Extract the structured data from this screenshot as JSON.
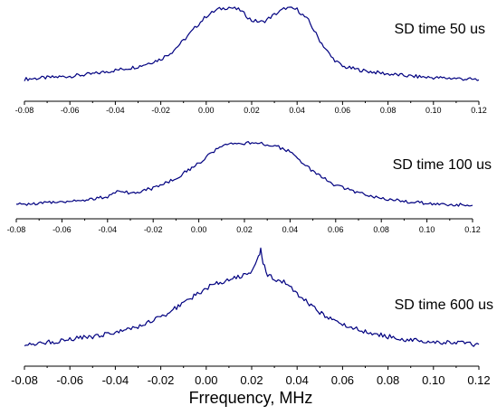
{
  "chart_data": [
    {
      "type": "line",
      "title": "SD time 50 us",
      "xlim": [
        -0.08,
        0.12
      ],
      "x_ticks": [
        "-0.08",
        "-0.06",
        "-0.04",
        "-0.02",
        "0.00",
        "0.02",
        "0.04",
        "0.06",
        "0.08",
        "0.10",
        "0.12"
      ],
      "y_axis_visible": false,
      "color": "#000080",
      "series": [
        {
          "x": [
            -0.08,
            -0.07,
            -0.06,
            -0.05,
            -0.04,
            -0.03,
            -0.02,
            -0.015,
            -0.01,
            -0.005,
            0.0,
            0.005,
            0.01,
            0.015,
            0.02,
            0.025,
            0.03,
            0.035,
            0.04,
            0.045,
            0.05,
            0.055,
            0.06,
            0.07,
            0.08,
            0.09,
            0.1,
            0.11,
            0.12
          ],
          "y": [
            0.03,
            0.05,
            0.07,
            0.1,
            0.15,
            0.2,
            0.3,
            0.4,
            0.55,
            0.72,
            0.88,
            0.97,
            1.0,
            0.96,
            0.82,
            0.8,
            0.9,
            0.99,
            0.97,
            0.82,
            0.55,
            0.33,
            0.2,
            0.14,
            0.1,
            0.07,
            0.05,
            0.04,
            0.02
          ]
        }
      ]
    },
    {
      "type": "line",
      "title": "SD time 100 us",
      "xlim": [
        -0.08,
        0.12
      ],
      "x_ticks": [
        "-0.08",
        "-0.06",
        "-0.04",
        "-0.02",
        "0.00",
        "0.02",
        "0.04",
        "0.06",
        "0.08",
        "0.10",
        "0.12"
      ],
      "y_axis_visible": false,
      "color": "#000080",
      "series": [
        {
          "x": [
            -0.08,
            -0.07,
            -0.06,
            -0.05,
            -0.04,
            -0.035,
            -0.03,
            -0.02,
            -0.01,
            0.0,
            0.005,
            0.01,
            0.015,
            0.02,
            0.025,
            0.03,
            0.035,
            0.04,
            0.045,
            0.05,
            0.06,
            0.07,
            0.08,
            0.09,
            0.1,
            0.11,
            0.12
          ],
          "y": [
            0.05,
            0.07,
            0.1,
            0.12,
            0.17,
            0.28,
            0.22,
            0.3,
            0.45,
            0.68,
            0.82,
            0.93,
            0.97,
            0.97,
            1.0,
            0.96,
            0.92,
            0.85,
            0.7,
            0.55,
            0.34,
            0.23,
            0.15,
            0.1,
            0.07,
            0.05,
            0.04
          ]
        }
      ]
    },
    {
      "type": "line",
      "title": "SD time 600 us",
      "xlim": [
        -0.08,
        0.12
      ],
      "x_ticks": [
        "-0.08",
        "-0.06",
        "-0.04",
        "-0.02",
        "0.00",
        "0.02",
        "0.04",
        "0.06",
        "0.08",
        "0.10",
        "0.12"
      ],
      "xlabel": "Frrequency, MHz",
      "y_axis_visible": false,
      "color": "#000080",
      "series": [
        {
          "x": [
            -0.08,
            -0.07,
            -0.06,
            -0.05,
            -0.04,
            -0.03,
            -0.02,
            -0.01,
            0.0,
            0.01,
            0.018,
            0.021,
            0.023,
            0.024,
            0.025,
            0.027,
            0.03,
            0.035,
            0.04,
            0.05,
            0.06,
            0.07,
            0.08,
            0.09,
            0.1,
            0.11,
            0.12
          ],
          "y": [
            0.02,
            0.04,
            0.07,
            0.1,
            0.14,
            0.2,
            0.3,
            0.45,
            0.6,
            0.7,
            0.74,
            0.8,
            0.92,
            1.0,
            0.86,
            0.74,
            0.7,
            0.66,
            0.54,
            0.35,
            0.22,
            0.15,
            0.1,
            0.06,
            0.05,
            0.03,
            0.02
          ]
        }
      ]
    }
  ]
}
